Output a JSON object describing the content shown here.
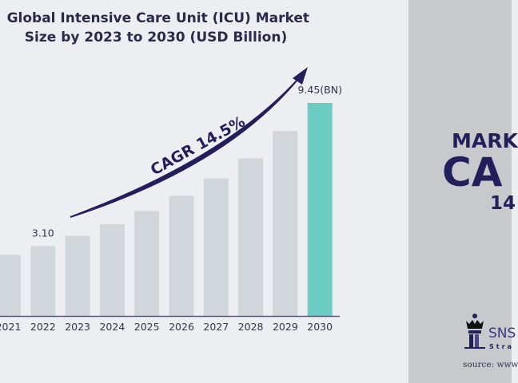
{
  "chart_data": {
    "type": "bar",
    "title_lines": [
      "Global Intensive Care Unit (ICU) Market",
      "Size by 2023 to 2030 (USD Billion)"
    ],
    "categories": [
      "2021",
      "2022",
      "2023",
      "2024",
      "2025",
      "2026",
      "2027",
      "2028",
      "2029",
      "2030"
    ],
    "values": [
      2.71,
      3.1,
      3.55,
      4.07,
      4.66,
      5.33,
      6.1,
      6.99,
      8.2,
      9.45
    ],
    "data_labels": {
      "2022": "3.10",
      "2030": "9.45(BN)"
    },
    "annotation": "CAGR 14.5%",
    "xlabel": "",
    "ylabel": "",
    "ylim": [
      0,
      9.8
    ],
    "grid": false,
    "colors": {
      "bar": "#d1d6db",
      "highlight": "#6ccbc3",
      "arrow": "#231f5a",
      "background": "#eceef2"
    }
  },
  "side_panel": {
    "line1": "MARK",
    "line2": "CA",
    "line3": "14",
    "logo_text": "SNS",
    "logo_sub": "Stra",
    "source": "source: www",
    "background": "#c8c9cc"
  }
}
